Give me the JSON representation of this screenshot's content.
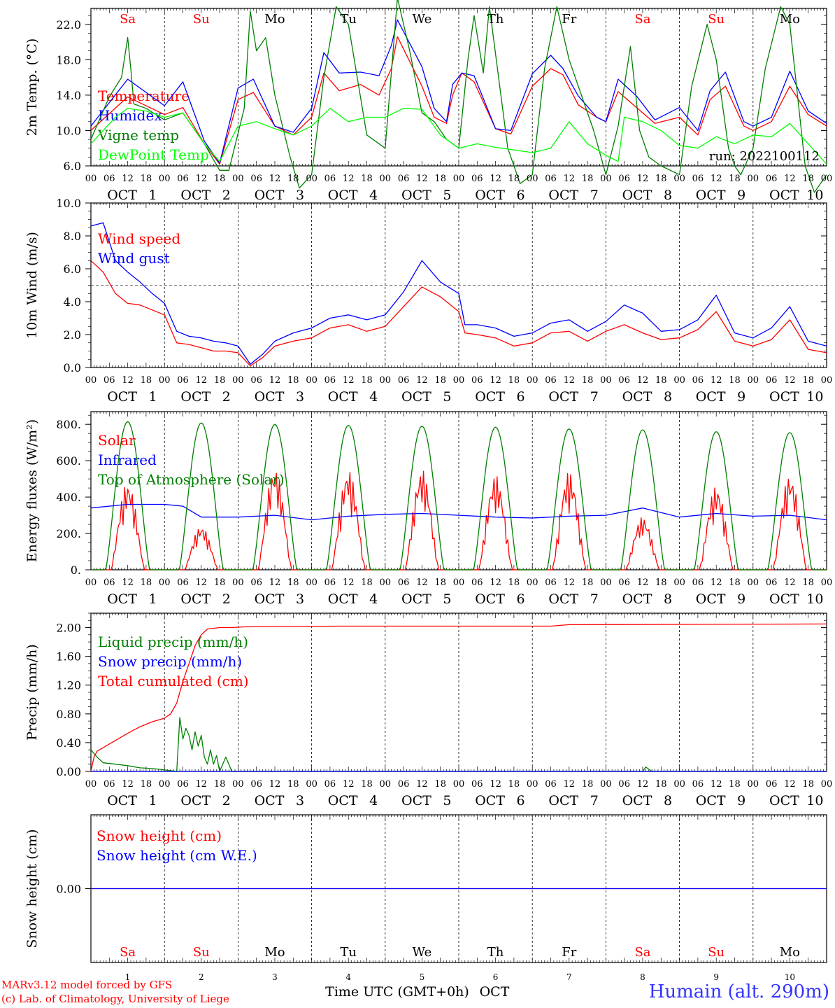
{
  "chart_data": [
    {
      "id": "temp",
      "type": "line",
      "ylabel": "2m Temp. (°C)",
      "yticks": [
        "6.0",
        "10.0",
        "14.0",
        "18.0",
        "22.0"
      ],
      "ylim": [
        6,
        23.8
      ],
      "xlim": [
        0,
        240
      ],
      "annotation": "run: 2022100112",
      "series": [
        {
          "name": "Temperature",
          "color": "#ff0000",
          "x": [
            0,
            12,
            24,
            30,
            37,
            42,
            48,
            53,
            60,
            66,
            72,
            76,
            81,
            88,
            94,
            98,
            100,
            108,
            112,
            116,
            118,
            121,
            125,
            132,
            137,
            144,
            150,
            154,
            159,
            165,
            168,
            172,
            178,
            184,
            192,
            198,
            202,
            207,
            213,
            216,
            222,
            228,
            234,
            240
          ],
          "y": [
            10,
            13.8,
            11.8,
            12.6,
            8.5,
            6.2,
            13.5,
            14.3,
            10.5,
            9.5,
            11.5,
            16.5,
            14.5,
            15.2,
            14,
            17,
            20.6,
            15,
            11.5,
            10.8,
            14,
            16.5,
            15.5,
            10.2,
            9.6,
            15,
            17,
            16.3,
            12.9,
            11.5,
            11,
            14.4,
            12.6,
            10.8,
            11.5,
            9.5,
            13.5,
            15,
            10.5,
            10,
            11,
            15,
            11.8,
            10.5
          ]
        },
        {
          "name": "Humidex",
          "color": "#0000ff",
          "x": [
            0,
            12,
            24,
            30,
            37,
            42,
            48,
            53,
            60,
            66,
            72,
            76,
            81,
            88,
            94,
            98,
            100,
            108,
            112,
            116,
            118,
            121,
            125,
            132,
            137,
            144,
            150,
            154,
            159,
            165,
            168,
            172,
            178,
            184,
            192,
            198,
            202,
            207,
            213,
            216,
            222,
            228,
            234,
            240
          ],
          "y": [
            10.5,
            15.8,
            12.8,
            15.5,
            8.8,
            6.3,
            14.8,
            15.8,
            10.5,
            9.8,
            12.5,
            18.8,
            16.5,
            16.6,
            16.2,
            19.6,
            22.5,
            17.2,
            12.5,
            11,
            15.2,
            16.5,
            16.2,
            10.2,
            10,
            16.4,
            18.5,
            17,
            13.9,
            11.5,
            11,
            15.8,
            13.9,
            11.2,
            12.6,
            10,
            14.5,
            16.6,
            11,
            10.5,
            11.5,
            16.7,
            12.2,
            10.8
          ]
        },
        {
          "name": "Vigne temp",
          "color": "#008000",
          "x": [
            0,
            6,
            10,
            12,
            13,
            14,
            18,
            24,
            30,
            37,
            42,
            45,
            50,
            52,
            54,
            57,
            60,
            65,
            68,
            72,
            76,
            80,
            84,
            90,
            96,
            100,
            104,
            108,
            112,
            116,
            120,
            123,
            125,
            128,
            130,
            136,
            140,
            144,
            148,
            152,
            156,
            164,
            168,
            172,
            174,
            176,
            179,
            182,
            186,
            192,
            196,
            201,
            204,
            208,
            210,
            212,
            216,
            220,
            225,
            228,
            233,
            236,
            240
          ],
          "y": [
            9,
            13.8,
            16,
            20.5,
            17,
            13,
            12.5,
            11.2,
            12,
            8.5,
            5.5,
            5.5,
            12.5,
            23.5,
            19,
            20.5,
            14,
            7,
            3.5,
            5,
            16,
            24,
            22,
            9.5,
            8,
            25,
            19,
            12,
            11,
            9,
            8,
            18,
            23,
            16.5,
            24,
            8,
            4,
            5,
            17,
            24,
            18,
            10,
            5,
            10.5,
            15,
            19.5,
            10,
            7,
            6,
            5,
            15,
            22,
            18,
            8,
            6,
            5,
            8,
            17,
            24,
            22,
            6,
            3,
            5
          ]
        },
        {
          "name": "DewPoint Temp",
          "color": "#00ff00",
          "x": [
            0,
            8,
            12,
            18,
            24,
            30,
            37,
            42,
            48,
            54,
            60,
            66,
            72,
            78,
            84,
            90,
            96,
            102,
            108,
            114,
            120,
            126,
            132,
            138,
            144,
            150,
            156,
            162,
            168,
            172,
            174,
            180,
            186,
            192,
            198,
            204,
            210,
            216,
            222,
            228,
            234,
            240
          ],
          "y": [
            8.5,
            11.5,
            12.5,
            12.2,
            11.5,
            12,
            8.5,
            6.5,
            10.5,
            11,
            10.2,
            9.5,
            10.5,
            12.5,
            11,
            11.5,
            11.5,
            12.5,
            12.4,
            9.5,
            8,
            8.5,
            8.1,
            7.8,
            7.5,
            8,
            11,
            8.5,
            7.2,
            6.5,
            11.5,
            11,
            10,
            8.3,
            8,
            9.3,
            8.5,
            9.5,
            9.3,
            10.8,
            8.5,
            6.2
          ]
        }
      ]
    },
    {
      "id": "wind",
      "type": "line",
      "ylabel": "10m Wind (m/s)",
      "yticks": [
        "0.0",
        "2.0",
        "4.0",
        "6.0",
        "8.0",
        "10.0"
      ],
      "ylim": [
        0,
        10
      ],
      "xlim": [
        0,
        240
      ],
      "ref_line": 5,
      "series": [
        {
          "name": "Wind speed",
          "color": "#ff0000",
          "x": [
            0,
            4,
            8,
            12,
            16,
            20,
            24,
            28,
            32,
            36,
            40,
            44,
            48,
            52,
            56,
            60,
            66,
            72,
            78,
            84,
            90,
            96,
            102,
            108,
            114,
            120,
            122,
            126,
            132,
            138,
            144,
            150,
            156,
            162,
            168,
            174,
            180,
            186,
            192,
            198,
            204,
            210,
            216,
            222,
            228,
            234,
            240
          ],
          "y": [
            6.5,
            5.8,
            4.5,
            3.9,
            3.8,
            3.5,
            3.2,
            1.5,
            1.4,
            1.2,
            1,
            1,
            0.9,
            0.1,
            0.6,
            1.3,
            1.6,
            1.8,
            2.4,
            2.6,
            2.2,
            2.5,
            3.7,
            4.9,
            4.3,
            3.4,
            2.1,
            2,
            1.8,
            1.3,
            1.5,
            2.1,
            2.2,
            1.6,
            2.2,
            2.6,
            2.1,
            1.7,
            1.8,
            2.3,
            3.4,
            1.6,
            1.3,
            1.7,
            2.9,
            1.1,
            0.9
          ]
        },
        {
          "name": "Wind gust",
          "color": "#0000ff",
          "x": [
            0,
            4,
            8,
            12,
            16,
            20,
            24,
            28,
            32,
            36,
            40,
            44,
            48,
            52,
            56,
            60,
            66,
            72,
            78,
            84,
            90,
            96,
            102,
            108,
            114,
            120,
            122,
            126,
            132,
            138,
            144,
            150,
            156,
            162,
            168,
            174,
            180,
            186,
            192,
            198,
            204,
            210,
            216,
            222,
            228,
            234,
            240
          ],
          "y": [
            8.6,
            8.8,
            6.5,
            5.8,
            5.2,
            4.5,
            3.9,
            2.2,
            1.9,
            1.8,
            1.6,
            1.5,
            1.3,
            0.2,
            0.8,
            1.6,
            2.1,
            2.4,
            3,
            3.2,
            2.9,
            3.2,
            4.6,
            6.5,
            5.2,
            4.5,
            2.6,
            2.6,
            2.4,
            1.9,
            2.1,
            2.7,
            2.9,
            2.2,
            2.8,
            3.8,
            3.3,
            2.2,
            2.3,
            2.9,
            4.4,
            2.1,
            1.8,
            2.4,
            3.7,
            1.6,
            1.3
          ]
        }
      ]
    },
    {
      "id": "energy",
      "type": "line",
      "ylabel": "Energy fluxes (W/m²)",
      "yticks": [
        "0.",
        "200.",
        "400.",
        "600.",
        "800."
      ],
      "ylim": [
        0,
        870
      ],
      "xlim": [
        0,
        240
      ],
      "series": [
        {
          "name": "Solar",
          "color": "#ff0000",
          "peaks": [
            480,
            240,
            560,
            550,
            550,
            520,
            540,
            290,
            460,
            520
          ],
          "note": "daily cycle peaks"
        },
        {
          "name": "Infrared",
          "color": "#0000ff",
          "x": [
            0,
            12,
            24,
            30,
            36,
            48,
            60,
            72,
            84,
            96,
            108,
            120,
            132,
            144,
            156,
            168,
            180,
            192,
            204,
            216,
            228,
            240
          ],
          "y": [
            340,
            360,
            360,
            350,
            290,
            290,
            300,
            275,
            295,
            305,
            310,
            300,
            290,
            285,
            295,
            300,
            340,
            290,
            310,
            295,
            300,
            275
          ]
        },
        {
          "name": "Top of Atmosphere (Solar)",
          "color": "#008000",
          "peaks": [
            815,
            808,
            800,
            795,
            790,
            785,
            775,
            770,
            760,
            755
          ],
          "note": "daily cycle peaks"
        }
      ]
    },
    {
      "id": "precip",
      "type": "line",
      "ylabel": "Precip (mm/h)",
      "yticks": [
        "0.00",
        "0.40",
        "0.80",
        "1.20",
        "1.60",
        "2.00"
      ],
      "ylim": [
        0,
        2.2
      ],
      "xlim": [
        0,
        240
      ],
      "series": [
        {
          "name": "Liquid precip (mm/h)",
          "color": "#008000",
          "x": [
            0,
            2,
            4,
            8,
            12,
            16,
            20,
            24,
            28,
            29,
            30,
            31,
            32,
            33,
            34,
            35,
            36,
            37,
            38,
            39,
            40,
            41,
            42,
            44,
            46,
            48,
            50,
            180,
            181,
            182,
            183,
            240
          ],
          "y": [
            0.3,
            0.2,
            0.12,
            0.1,
            0.08,
            0.05,
            0.04,
            0.02,
            0,
            0.75,
            0.45,
            0.6,
            0.5,
            0.3,
            0.55,
            0.35,
            0.5,
            0.2,
            0.1,
            0.3,
            0.1,
            0.22,
            0,
            0.2,
            0,
            0,
            0,
            0,
            0.06,
            0.03,
            0,
            0
          ]
        },
        {
          "name": "Snow precip (mm/h)",
          "color": "#0000ff",
          "x": [
            0,
            240
          ],
          "y": [
            0,
            0
          ]
        },
        {
          "name": "Total cumulated (cm)",
          "color": "#ff0000",
          "x": [
            0,
            1,
            2,
            4,
            8,
            12,
            16,
            20,
            24,
            26,
            28,
            30,
            32,
            34,
            36,
            38,
            40,
            42,
            46,
            50,
            80,
            150,
            156,
            240
          ],
          "y": [
            0,
            0.2,
            0.28,
            0.33,
            0.43,
            0.53,
            0.62,
            0.69,
            0.74,
            0.8,
            0.95,
            1.25,
            1.5,
            1.75,
            1.9,
            1.98,
            1.99,
            2.0,
            2.0,
            2.01,
            2.02,
            2.02,
            2.04,
            2.05
          ]
        }
      ]
    },
    {
      "id": "snow",
      "type": "line",
      "ylabel": "Snow height (cm)",
      "yticks": [
        "0.00"
      ],
      "ylim": [
        -1,
        1
      ],
      "xlim": [
        0,
        240
      ],
      "series": [
        {
          "name": "Snow height (cm)",
          "color": "#ff0000",
          "x": [
            0,
            240
          ],
          "y": [
            0,
            0
          ]
        },
        {
          "name": "Snow height (cm W.E.)",
          "color": "#0000ff",
          "x": [
            0,
            240
          ],
          "y": [
            0,
            0
          ]
        }
      ]
    }
  ],
  "days": [
    {
      "abbr": "Sa",
      "month": "OCT",
      "num": "1",
      "weekend": true
    },
    {
      "abbr": "Su",
      "month": "OCT",
      "num": "2",
      "weekend": true
    },
    {
      "abbr": "Mo",
      "month": "OCT",
      "num": "3",
      "weekend": false
    },
    {
      "abbr": "Tu",
      "month": "OCT",
      "num": "4",
      "weekend": false
    },
    {
      "abbr": "We",
      "month": "OCT",
      "num": "5",
      "weekend": false
    },
    {
      "abbr": "Th",
      "month": "OCT",
      "num": "6",
      "weekend": false
    },
    {
      "abbr": "Fr",
      "month": "OCT",
      "num": "7",
      "weekend": false
    },
    {
      "abbr": "Sa",
      "month": "OCT",
      "num": "8",
      "weekend": true
    },
    {
      "abbr": "Su",
      "month": "OCT",
      "num": "9",
      "weekend": true
    },
    {
      "abbr": "Mo",
      "month": "OCT",
      "num": "10",
      "weekend": false
    }
  ],
  "hour_ticks": [
    "00",
    "06",
    "12",
    "18"
  ],
  "final_hour_tick": "00",
  "colors": {
    "weekend": "#ff0000",
    "weekday": "#000000",
    "axis": "#000000"
  },
  "xlabel": "Time UTC (GMT+0h)",
  "xlabel_month": "OCT",
  "footer": {
    "credit_line1": "MARv3.12 model forced by GFS",
    "credit_line2": "(c) Lab. of Climatology, University of Liege",
    "station": "Humain (alt. 290m)"
  }
}
